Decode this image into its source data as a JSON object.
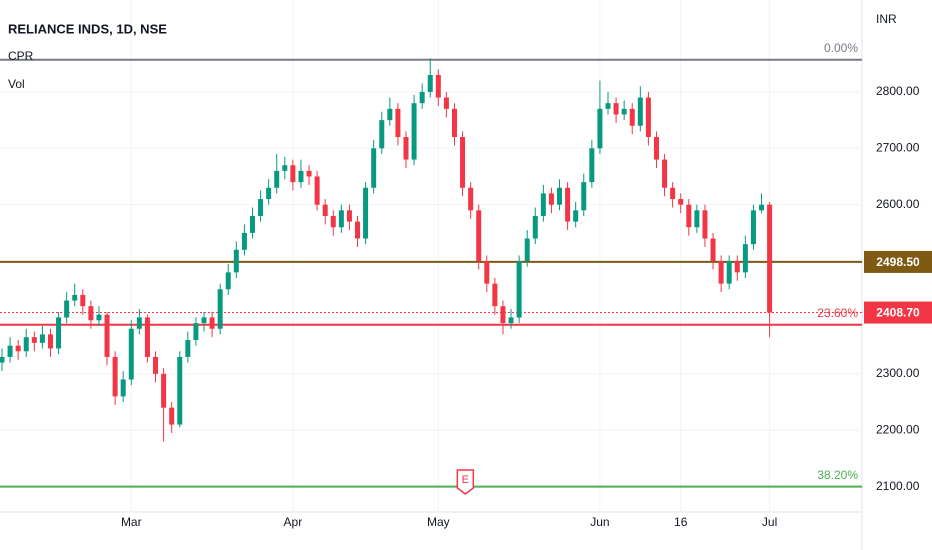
{
  "chart_data": {
    "type": "candlestick",
    "title": "RELIANCE INDS, 1D, NSE",
    "indicators": [
      "CPR",
      "Vol"
    ],
    "currency": "INR",
    "event_marker": "E",
    "up_color": "#089981",
    "down_color": "#f23645",
    "categories": [
      null,
      null,
      null,
      null,
      null,
      null,
      null,
      null,
      null,
      null,
      null,
      null,
      null,
      null,
      null,
      null,
      "Mar",
      null,
      null,
      null,
      null,
      null,
      null,
      null,
      null,
      null,
      null,
      null,
      null,
      null,
      null,
      null,
      null,
      null,
      null,
      null,
      "Apr",
      null,
      null,
      null,
      null,
      null,
      null,
      null,
      null,
      null,
      null,
      null,
      null,
      null,
      null,
      null,
      null,
      null,
      "May",
      null,
      null,
      null,
      null,
      null,
      null,
      null,
      null,
      null,
      null,
      null,
      null,
      null,
      null,
      null,
      null,
      null,
      null,
      null,
      "Jun",
      null,
      null,
      null,
      null,
      null,
      null,
      null,
      null,
      null,
      "16",
      null,
      null,
      null,
      null,
      null,
      null,
      null,
      null,
      null,
      null,
      "Jul"
    ],
    "open": [
      2320,
      2330,
      2350,
      2340,
      2365,
      2355,
      2370,
      2345,
      2400,
      2430,
      2440,
      2420,
      2395,
      2405,
      2330,
      2260,
      2290,
      2380,
      2400,
      2330,
      2300,
      2240,
      2210,
      2330,
      2360,
      2390,
      2400,
      2380,
      2450,
      2480,
      2520,
      2550,
      2580,
      2610,
      2630,
      2660,
      2670,
      2640,
      2660,
      2650,
      2600,
      2580,
      2560,
      2590,
      2570,
      2540,
      2630,
      2700,
      2750,
      2770,
      2720,
      2680,
      2780,
      2800,
      2830,
      2790,
      2770,
      2720,
      2630,
      2590,
      2500,
      2460,
      2420,
      2390,
      2400,
      2500,
      2540,
      2580,
      2620,
      2600,
      2630,
      2570,
      2590,
      2640,
      2700,
      2770,
      2780,
      2760,
      2770,
      2740,
      2790,
      2720,
      2680,
      2630,
      2610,
      2600,
      2560,
      2590,
      2540,
      2500,
      2460,
      2500,
      2480,
      2530,
      2590,
      2600
    ],
    "high": [
      2345,
      2365,
      2360,
      2380,
      2375,
      2385,
      2380,
      2410,
      2445,
      2460,
      2450,
      2430,
      2420,
      2410,
      2340,
      2305,
      2395,
      2415,
      2405,
      2340,
      2310,
      2250,
      2340,
      2375,
      2400,
      2410,
      2410,
      2460,
      2495,
      2535,
      2565,
      2595,
      2625,
      2645,
      2690,
      2685,
      2680,
      2680,
      2670,
      2660,
      2610,
      2590,
      2600,
      2600,
      2580,
      2640,
      2715,
      2765,
      2790,
      2780,
      2730,
      2795,
      2815,
      2860,
      2840,
      2800,
      2780,
      2730,
      2640,
      2600,
      2510,
      2470,
      2430,
      2415,
      2510,
      2555,
      2595,
      2635,
      2630,
      2645,
      2640,
      2605,
      2655,
      2715,
      2820,
      2800,
      2790,
      2785,
      2780,
      2810,
      2800,
      2730,
      2690,
      2640,
      2620,
      2610,
      2600,
      2600,
      2550,
      2510,
      2510,
      2510,
      2545,
      2600,
      2620,
      2605
    ],
    "low": [
      2305,
      2320,
      2325,
      2330,
      2340,
      2345,
      2330,
      2335,
      2390,
      2420,
      2405,
      2380,
      2385,
      2315,
      2245,
      2250,
      2280,
      2370,
      2320,
      2285,
      2180,
      2195,
      2205,
      2320,
      2350,
      2375,
      2365,
      2370,
      2440,
      2470,
      2510,
      2540,
      2570,
      2600,
      2620,
      2645,
      2625,
      2630,
      2635,
      2590,
      2565,
      2545,
      2550,
      2555,
      2525,
      2530,
      2620,
      2690,
      2740,
      2705,
      2665,
      2670,
      2770,
      2790,
      2775,
      2755,
      2705,
      2615,
      2575,
      2485,
      2445,
      2405,
      2370,
      2380,
      2390,
      2490,
      2530,
      2570,
      2585,
      2590,
      2555,
      2560,
      2580,
      2630,
      2690,
      2760,
      2745,
      2750,
      2725,
      2730,
      2705,
      2665,
      2615,
      2595,
      2585,
      2545,
      2550,
      2525,
      2485,
      2445,
      2450,
      2465,
      2470,
      2520,
      2585,
      2365
    ],
    "close": [
      2330,
      2350,
      2340,
      2365,
      2355,
      2370,
      2345,
      2400,
      2430,
      2440,
      2420,
      2395,
      2405,
      2330,
      2260,
      2290,
      2380,
      2400,
      2330,
      2300,
      2240,
      2210,
      2330,
      2360,
      2390,
      2400,
      2380,
      2450,
      2480,
      2520,
      2550,
      2580,
      2610,
      2630,
      2660,
      2670,
      2640,
      2660,
      2650,
      2600,
      2580,
      2560,
      2590,
      2570,
      2540,
      2630,
      2700,
      2750,
      2770,
      2720,
      2680,
      2780,
      2800,
      2830,
      2790,
      2770,
      2720,
      2630,
      2590,
      2500,
      2460,
      2420,
      2390,
      2400,
      2500,
      2540,
      2580,
      2620,
      2600,
      2630,
      2570,
      2590,
      2640,
      2700,
      2770,
      2780,
      2760,
      2770,
      2740,
      2790,
      2720,
      2680,
      2630,
      2610,
      2600,
      2560,
      2590,
      2540,
      2500,
      2460,
      2500,
      2480,
      2530,
      2590,
      2600,
      2408.7
    ],
    "ylim": [
      2055,
      2963
    ],
    "yticks": [
      {
        "value": 2100,
        "label": "2100.00"
      },
      {
        "value": 2200,
        "label": "2200.00"
      },
      {
        "value": 2300,
        "label": "2300.00"
      },
      {
        "value": 2400,
        "label": "2400.00"
      },
      {
        "value": 2500,
        "label": "2500.00"
      },
      {
        "value": 2600,
        "label": "2600.00"
      },
      {
        "value": 2700,
        "label": "2700.00"
      },
      {
        "value": 2800,
        "label": "2800.00"
      }
    ],
    "fib_levels": [
      {
        "value": 2857,
        "label": "0.00%",
        "color": "#787b86"
      },
      {
        "value": 2387,
        "label": "23.60%",
        "color": "#f23645"
      },
      {
        "value": 2100,
        "label": "38.20%",
        "color": "#4caf50"
      }
    ],
    "price_lines": [
      {
        "value": 2498.5,
        "label": "2498.50",
        "color": "#7f5a13"
      },
      {
        "value": 2408.7,
        "label": "2408.70",
        "color": "#f23645"
      }
    ]
  }
}
